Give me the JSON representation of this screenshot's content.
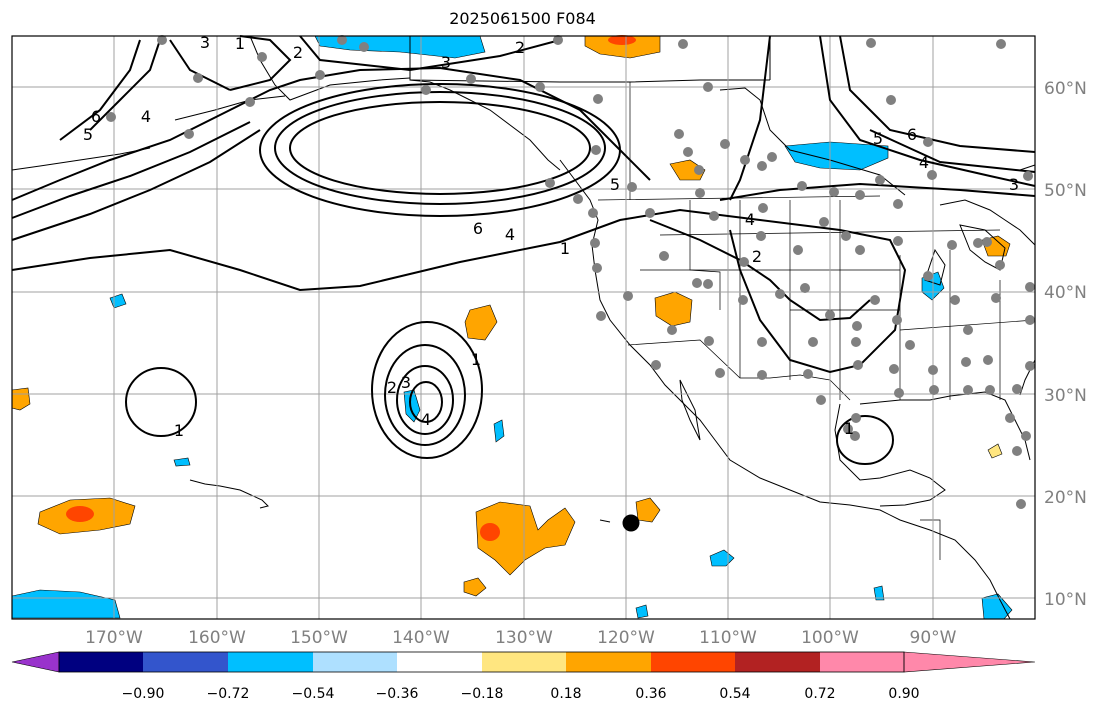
{
  "title": "2025061500 F084",
  "map": {
    "lon_range": [
      -180,
      -80
    ],
    "lat_range": [
      8,
      65
    ],
    "lat_ticks": [
      {
        "value": 60,
        "label": "60°N"
      },
      {
        "value": 50,
        "label": "50°N"
      },
      {
        "value": 40,
        "label": "40°N"
      },
      {
        "value": 30,
        "label": "30°N"
      },
      {
        "value": 20,
        "label": "20°N"
      },
      {
        "value": 10,
        "label": "10°N"
      }
    ],
    "lon_ticks": [
      {
        "value": -170,
        "label": "170°W"
      },
      {
        "value": -160,
        "label": "160°W"
      },
      {
        "value": -150,
        "label": "150°W"
      },
      {
        "value": -140,
        "label": "140°W"
      },
      {
        "value": -130,
        "label": "130°W"
      },
      {
        "value": -120,
        "label": "120°W"
      },
      {
        "value": -110,
        "label": "110°W"
      },
      {
        "value": -100,
        "label": "100°W"
      },
      {
        "value": -90,
        "label": "90°W"
      }
    ],
    "gridlines": true,
    "contour_labels": [
      "1",
      "2",
      "3",
      "4",
      "5",
      "6"
    ],
    "marked_point": {
      "lon": -119.7,
      "lat": 17.3
    }
  },
  "colorbar": {
    "ticks": [
      "−0.90",
      "−0.72",
      "−0.54",
      "−0.36",
      "−0.18",
      "0.18",
      "0.36",
      "0.54",
      "0.72",
      "0.90"
    ],
    "colors": [
      "#9933cc",
      "#000080",
      "#3355cc",
      "#00bfff",
      "#aee0ff",
      "#ffffff",
      "#ffe680",
      "#ffa500",
      "#ff4500",
      "#b22222",
      "#ff88aa"
    ],
    "extend": "both"
  }
}
